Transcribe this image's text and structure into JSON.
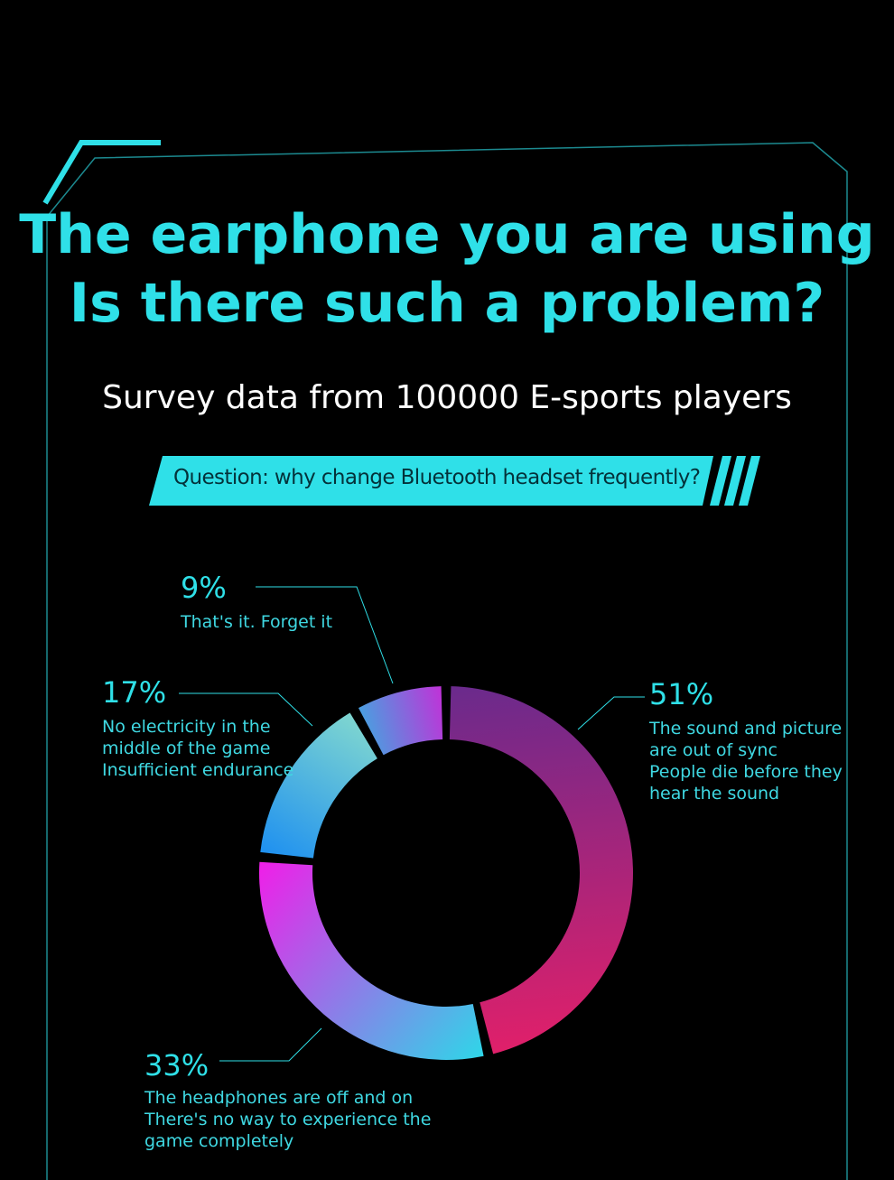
{
  "chart_data": {
    "type": "donut",
    "title": "The earphone you are using\nIs there such a problem?",
    "subtitle": "Survey data from 100000 E-sports players",
    "question": "Question: why change Bluetooth headset frequently?",
    "categories": [
      "The sound and picture\nare out of sync\nPeople die before they\nhear the sound",
      "The headphones are off and on\nThere's no way to experience the\n game completely",
      "No electricity in the\nmiddle of the game\nInsufficient endurance",
      "That's it. Forget it"
    ],
    "values": [
      51,
      33,
      17,
      9
    ],
    "value_labels": [
      "51%",
      "33%",
      "17%",
      "9%"
    ],
    "colors": [
      [
        "#6a2a8c",
        "#e0206a"
      ],
      [
        "#2fd6e8",
        "#f01ee8"
      ],
      [
        "#1e90f0",
        "#7fd6d0"
      ],
      [
        "#4a9fe0",
        "#c032d8"
      ]
    ]
  }
}
